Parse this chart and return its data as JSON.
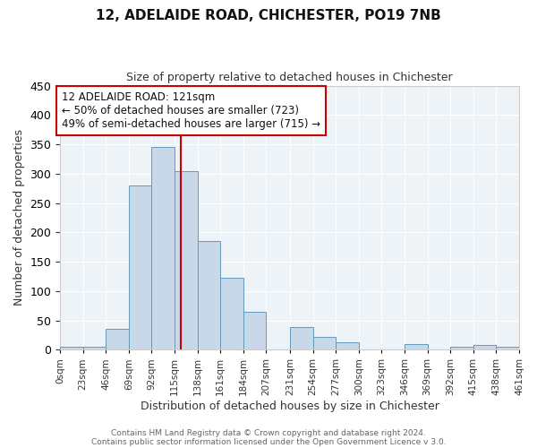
{
  "title": "12, ADELAIDE ROAD, CHICHESTER, PO19 7NB",
  "subtitle": "Size of property relative to detached houses in Chichester",
  "xlabel": "Distribution of detached houses by size in Chichester",
  "ylabel": "Number of detached properties",
  "bin_edges": [
    0,
    23,
    46,
    69,
    92,
    115,
    138,
    161,
    184,
    207,
    231,
    254,
    277,
    300,
    323,
    346,
    369,
    392,
    415,
    438,
    461
  ],
  "bar_heights": [
    5,
    5,
    36,
    280,
    345,
    305,
    185,
    123,
    65,
    0,
    38,
    22,
    12,
    0,
    0,
    10,
    0,
    5,
    8,
    5
  ],
  "bar_color": "#c8d8e8",
  "bar_edgecolor": "#6699bb",
  "vline_x": 121,
  "vline_color": "#cc0000",
  "annotation_line1": "12 ADELAIDE ROAD: 121sqm",
  "annotation_line2": "← 50% of detached houses are smaller (723)",
  "annotation_line3": "49% of semi-detached houses are larger (715) →",
  "annotation_fontsize": 8.5,
  "ylim": [
    0,
    450
  ],
  "xlim": [
    0,
    461
  ],
  "bg_color": "#eef3f8",
  "fig_bg_color": "#ffffff",
  "grid_color": "#ffffff",
  "footer_line1": "Contains HM Land Registry data © Crown copyright and database right 2024.",
  "footer_line2": "Contains public sector information licensed under the Open Government Licence v 3.0.",
  "tick_labels": [
    "0sqm",
    "23sqm",
    "46sqm",
    "69sqm",
    "92sqm",
    "115sqm",
    "138sqm",
    "161sqm",
    "184sqm",
    "207sqm",
    "231sqm",
    "254sqm",
    "277sqm",
    "300sqm",
    "323sqm",
    "346sqm",
    "369sqm",
    "392sqm",
    "415sqm",
    "438sqm",
    "461sqm"
  ],
  "yticks": [
    0,
    50,
    100,
    150,
    200,
    250,
    300,
    350,
    400,
    450
  ]
}
